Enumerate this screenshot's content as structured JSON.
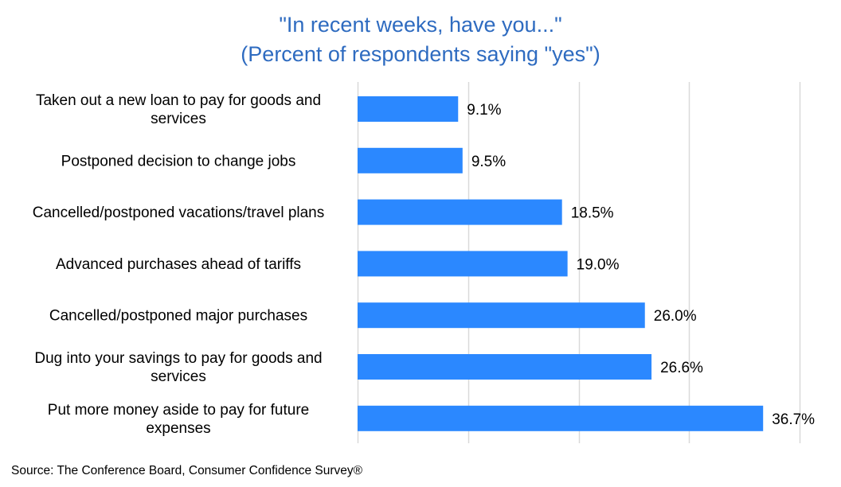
{
  "chart_data": {
    "type": "bar",
    "orientation": "horizontal",
    "title": [
      "\"In recent weeks, have you...\"",
      "(Percent of respondents saying \"yes\")"
    ],
    "categories": [
      [
        "Taken out a new loan to pay for goods and",
        "services"
      ],
      [
        "Postponed decision to change jobs"
      ],
      [
        "Cancelled/postponed vacations/travel plans"
      ],
      [
        "Advanced purchases ahead of tariffs"
      ],
      [
        "Cancelled/postponed major purchases"
      ],
      [
        "Dug into your savings to pay for goods and",
        "services"
      ],
      [
        "Put more money aside to pay for future",
        "expenses"
      ]
    ],
    "values": [
      9.1,
      9.5,
      18.5,
      19.0,
      26.0,
      26.6,
      36.7
    ],
    "value_labels": [
      "9.1%",
      "9.5%",
      "18.5%",
      "19.0%",
      "26.0%",
      "26.6%",
      "36.7%"
    ],
    "xlim": [
      0,
      40
    ],
    "gridlines": [
      0,
      10,
      20,
      30,
      40
    ],
    "grid": true,
    "legend": "none",
    "bar_color": "#2b88ff",
    "title_color": "#2e6bc0",
    "gridline_color": "#d9d9d9"
  },
  "source": "Source: The Conference Board, Consumer Confidence Survey®"
}
